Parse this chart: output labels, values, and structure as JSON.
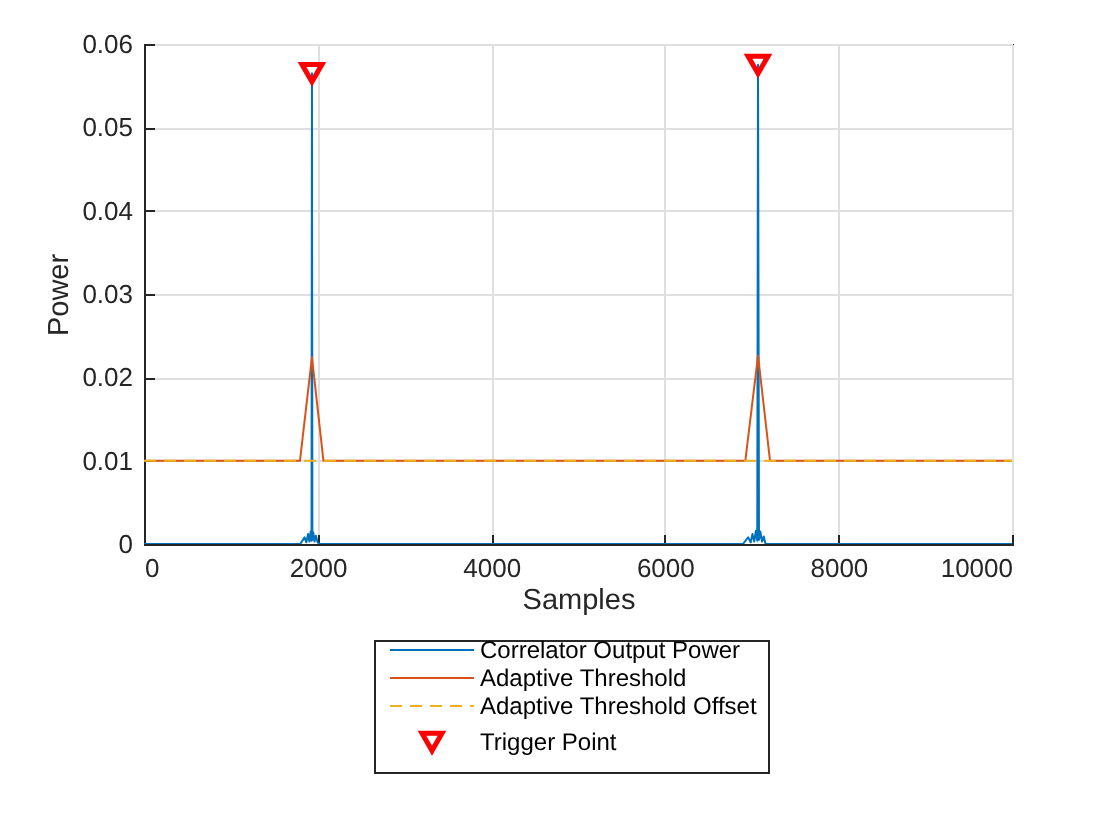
{
  "chart_data": {
    "type": "line",
    "xlabel": "Samples",
    "ylabel": "Power",
    "xlim": [
      0,
      10000
    ],
    "ylim": [
      0,
      0.06
    ],
    "xticks": [
      0,
      2000,
      4000,
      6000,
      8000,
      10000
    ],
    "yticks": [
      0,
      0.01,
      0.02,
      0.03,
      0.04,
      0.05,
      0.06
    ],
    "grid": true,
    "legend": "bottom",
    "series": [
      {
        "name": "Correlator Output Power",
        "color": "#0072bd",
        "x": [
          0,
          1800,
          1850,
          1870,
          1890,
          1905,
          1920,
          1930,
          1935,
          1940,
          1950,
          1965,
          1980,
          2000,
          2020,
          6900,
          6960,
          6990,
          7010,
          7030,
          7050,
          7065,
          7074,
          7085,
          7100,
          7120,
          7140,
          7160,
          10000
        ],
        "values": [
          0,
          0,
          0.0008,
          0.0002,
          0.0012,
          0.0003,
          0.0015,
          0.0004,
          0.0565,
          0.0005,
          0.0014,
          0.0003,
          0.001,
          0.0002,
          0,
          0,
          0.0008,
          0.0002,
          0.0012,
          0.0003,
          0.0016,
          0.0004,
          0.0575,
          0.0005,
          0.0015,
          0.0003,
          0.0009,
          0,
          0
        ]
      },
      {
        "name": "Adaptive Threshold",
        "color": "#d95319",
        "x": [
          0,
          1797,
          1935,
          2067,
          6928,
          7074,
          7212,
          10000
        ],
        "values": [
          0.01,
          0.01,
          0.0224,
          0.01,
          0.01,
          0.0226,
          0.01,
          0.01
        ]
      },
      {
        "name": "Adaptive Threshold Offset",
        "color": "#edb120",
        "line_style": "dashed",
        "x": [
          0,
          10000
        ],
        "values": [
          0.01,
          0.01
        ]
      },
      {
        "name": "Trigger Point",
        "type": "scatter",
        "color": "#ff0000",
        "marker": "triangle",
        "x": [
          1935,
          7074
        ],
        "values": [
          0.0565,
          0.0575
        ]
      }
    ]
  }
}
